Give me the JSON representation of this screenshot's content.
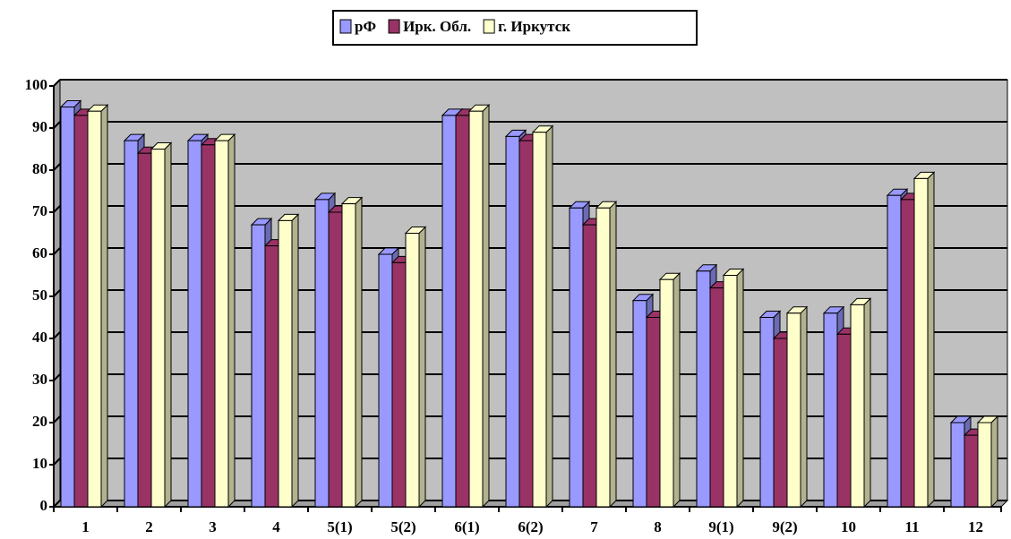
{
  "chart_data": {
    "type": "bar",
    "categories": [
      "1",
      "2",
      "3",
      "4",
      "5(1)",
      "5(2)",
      "6(1)",
      "6(2)",
      "7",
      "8",
      "9(1)",
      "9(2)",
      "10",
      "11",
      "12"
    ],
    "series": [
      {
        "name": "рФ",
        "color": "#9999ff",
        "values": [
          95,
          87,
          87,
          67,
          73,
          60,
          93,
          88,
          71,
          49,
          56,
          45,
          46,
          74,
          20
        ]
      },
      {
        "name": "Ирк. Обл.",
        "color": "#993366",
        "values": [
          93,
          84,
          86,
          62,
          70,
          58,
          93,
          87,
          67,
          45,
          52,
          40,
          41,
          73,
          17
        ]
      },
      {
        "name": "г. Иркутск",
        "color": "#ffffcc",
        "values": [
          94,
          85,
          87,
          68,
          72,
          65,
          94,
          89,
          71,
          54,
          55,
          46,
          48,
          78,
          20
        ]
      }
    ],
    "ylim": [
      0,
      100
    ],
    "yticks": [
      0,
      10,
      20,
      30,
      40,
      50,
      60,
      70,
      80,
      90,
      100
    ],
    "grid": true,
    "legend": "top"
  }
}
